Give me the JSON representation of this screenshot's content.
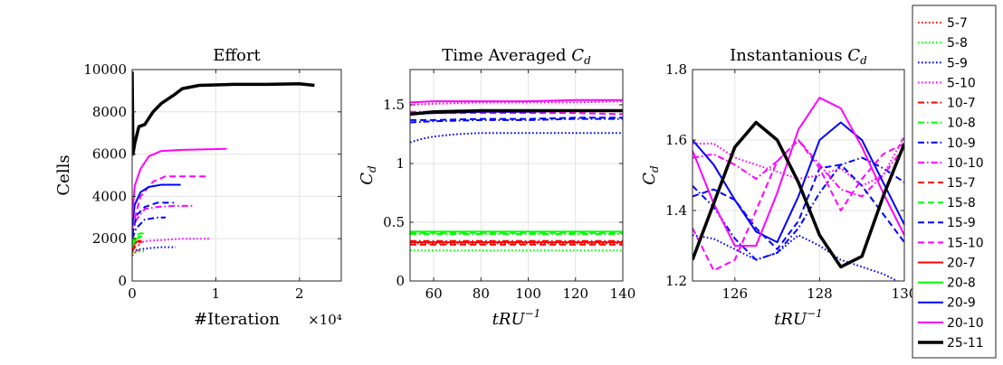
{
  "chart_data": [
    {
      "type": "line",
      "title": "Effort",
      "xlabel": "#Iteration",
      "ylabel": "Cells",
      "xlim": [
        0,
        25000
      ],
      "ylim": [
        0,
        10000
      ],
      "x_exponent_label": "×10⁴",
      "xticks": [
        0,
        10000,
        20000
      ],
      "xtick_labels": [
        "0",
        "1",
        "2"
      ],
      "yticks": [
        0,
        2000,
        4000,
        6000,
        8000,
        10000
      ],
      "ytick_labels": [
        "0",
        "2000",
        "4000",
        "6000",
        "8000",
        "10000"
      ],
      "grid": true,
      "series": [
        {
          "name": "5-7",
          "x": [
            0,
            200,
            500,
            800,
            1000
          ],
          "y": [
            1200,
            1300,
            1400,
            1450,
            1450
          ]
        },
        {
          "name": "5-8",
          "x": [
            0,
            200,
            600,
            1000,
            1500
          ],
          "y": [
            1300,
            1350,
            1400,
            1400,
            1400
          ]
        },
        {
          "name": "5-9",
          "x": [
            0,
            300,
            1000,
            2000,
            3500,
            5200
          ],
          "y": [
            1400,
            1450,
            1500,
            1550,
            1600,
            1600
          ]
        },
        {
          "name": "5-10",
          "x": [
            0,
            500,
            2000,
            4000,
            6000,
            9200
          ],
          "y": [
            1700,
            1800,
            1900,
            1950,
            2000,
            2000
          ]
        },
        {
          "name": "10-7",
          "x": [
            0,
            300,
            600,
            1000
          ],
          "y": [
            1400,
            1600,
            1700,
            1700
          ]
        },
        {
          "name": "10-8",
          "x": [
            0,
            300,
            800,
            1200
          ],
          "y": [
            1500,
            1900,
            2100,
            2100
          ]
        },
        {
          "name": "10-9",
          "x": [
            0,
            500,
            1500,
            3000,
            4000
          ],
          "y": [
            2000,
            2500,
            2900,
            3000,
            3000
          ]
        },
        {
          "name": "10-10",
          "x": [
            0,
            500,
            1500,
            3000,
            5000,
            7500
          ],
          "y": [
            2200,
            2900,
            3400,
            3500,
            3550,
            3550
          ]
        },
        {
          "name": "15-7",
          "x": [
            0,
            300,
            700,
            1200
          ],
          "y": [
            1500,
            1750,
            1850,
            1850
          ]
        },
        {
          "name": "15-8",
          "x": [
            0,
            400,
            900,
            1400
          ],
          "y": [
            1800,
            2100,
            2250,
            2250
          ]
        },
        {
          "name": "15-9",
          "x": [
            0,
            500,
            1500,
            3000,
            5000
          ],
          "y": [
            2200,
            3100,
            3500,
            3700,
            3700
          ]
        },
        {
          "name": "15-10",
          "x": [
            0,
            1000,
            2500,
            4000,
            6000,
            8800
          ],
          "y": [
            2500,
            4000,
            4700,
            4950,
            4950,
            4950
          ]
        },
        {
          "name": "20-7",
          "x": [
            0,
            300,
            800,
            1100
          ],
          "y": [
            1600,
            1800,
            1900,
            1900
          ]
        },
        {
          "name": "20-8",
          "x": [
            0,
            300,
            700,
            1000
          ],
          "y": [
            1600,
            1900,
            2050,
            2050
          ]
        },
        {
          "name": "20-9",
          "x": [
            0,
            300,
            1000,
            2000,
            3500,
            5800
          ],
          "y": [
            2600,
            3600,
            4200,
            4450,
            4550,
            4550
          ]
        },
        {
          "name": "20-10",
          "x": [
            0,
            300,
            1000,
            2000,
            3500,
            6000,
            11300
          ],
          "y": [
            3000,
            4500,
            5300,
            5900,
            6150,
            6200,
            6250
          ]
        },
        {
          "name": "25-11",
          "x": [
            0,
            100,
            300,
            800,
            1500,
            2500,
            3500,
            5000,
            6000,
            8000,
            12000,
            16000,
            20000,
            21800
          ],
          "y": [
            9900,
            6000,
            6500,
            7300,
            7400,
            8000,
            8400,
            8800,
            9100,
            9250,
            9300,
            9300,
            9330,
            9250
          ]
        }
      ]
    },
    {
      "type": "line",
      "title": "Time Averaged C_d",
      "xlabel": "tRU^{-1}",
      "ylabel": "C_d",
      "xlim": [
        50,
        140
      ],
      "ylim": [
        0,
        1.8
      ],
      "xticks": [
        60,
        80,
        100,
        120,
        140
      ],
      "xtick_labels": [
        "60",
        "80",
        "100",
        "120",
        "140"
      ],
      "yticks": [
        0,
        0.5,
        1,
        1.5
      ],
      "ytick_labels": [
        "0",
        "0.5",
        "1",
        "1.5"
      ],
      "grid": true,
      "series": [
        {
          "name": "5-7",
          "x": [
            50,
            60,
            80,
            100,
            120,
            140
          ],
          "y": [
            0.32,
            0.32,
            0.32,
            0.32,
            0.32,
            0.32
          ]
        },
        {
          "name": "5-8",
          "x": [
            50,
            60,
            80,
            100,
            120,
            140
          ],
          "y": [
            0.26,
            0.26,
            0.26,
            0.26,
            0.26,
            0.26
          ]
        },
        {
          "name": "5-9",
          "x": [
            50,
            55,
            60,
            70,
            80,
            100,
            120,
            140
          ],
          "y": [
            1.18,
            1.21,
            1.23,
            1.25,
            1.26,
            1.26,
            1.26,
            1.26
          ]
        },
        {
          "name": "5-10",
          "x": [
            50,
            60,
            80,
            100,
            120,
            140
          ],
          "y": [
            1.5,
            1.51,
            1.52,
            1.52,
            1.52,
            1.53
          ]
        },
        {
          "name": "10-7",
          "x": [
            50,
            60,
            80,
            100,
            120,
            140
          ],
          "y": [
            0.34,
            0.34,
            0.34,
            0.34,
            0.34,
            0.34
          ]
        },
        {
          "name": "10-8",
          "x": [
            50,
            60,
            80,
            100,
            120,
            140
          ],
          "y": [
            0.4,
            0.4,
            0.4,
            0.4,
            0.4,
            0.4
          ]
        },
        {
          "name": "10-9",
          "x": [
            50,
            60,
            80,
            100,
            120,
            140
          ],
          "y": [
            1.35,
            1.36,
            1.37,
            1.37,
            1.38,
            1.38
          ]
        },
        {
          "name": "10-10",
          "x": [
            50,
            60,
            80,
            100,
            120,
            140
          ],
          "y": [
            1.44,
            1.44,
            1.44,
            1.45,
            1.45,
            1.45
          ]
        },
        {
          "name": "15-7",
          "x": [
            50,
            60,
            80,
            100,
            120,
            140
          ],
          "y": [
            0.31,
            0.31,
            0.31,
            0.31,
            0.31,
            0.31
          ]
        },
        {
          "name": "15-8",
          "x": [
            50,
            60,
            80,
            100,
            120,
            140
          ],
          "y": [
            0.41,
            0.41,
            0.41,
            0.41,
            0.41,
            0.41
          ]
        },
        {
          "name": "15-9",
          "x": [
            50,
            60,
            80,
            100,
            120,
            140
          ],
          "y": [
            1.37,
            1.37,
            1.38,
            1.38,
            1.39,
            1.39
          ]
        },
        {
          "name": "15-10",
          "x": [
            50,
            60,
            80,
            100,
            120,
            140
          ],
          "y": [
            1.43,
            1.43,
            1.43,
            1.43,
            1.43,
            1.42
          ]
        },
        {
          "name": "20-7",
          "x": [
            50,
            60,
            80,
            100,
            120,
            140
          ],
          "y": [
            0.33,
            0.33,
            0.33,
            0.33,
            0.33,
            0.33
          ]
        },
        {
          "name": "20-8",
          "x": [
            50,
            60,
            80,
            100,
            120,
            140
          ],
          "y": [
            0.42,
            0.42,
            0.42,
            0.42,
            0.42,
            0.42
          ]
        },
        {
          "name": "20-9",
          "x": [
            50,
            60,
            80,
            100,
            120,
            140
          ],
          "y": [
            1.42,
            1.43,
            1.44,
            1.44,
            1.45,
            1.45
          ]
        },
        {
          "name": "20-10",
          "x": [
            50,
            60,
            80,
            100,
            120,
            140
          ],
          "y": [
            1.52,
            1.53,
            1.53,
            1.53,
            1.54,
            1.54
          ]
        },
        {
          "name": "25-11",
          "x": [
            50,
            55,
            60,
            80,
            100,
            120,
            140
          ],
          "y": [
            1.42,
            1.43,
            1.44,
            1.45,
            1.45,
            1.45,
            1.45
          ]
        }
      ]
    },
    {
      "type": "line",
      "title": "Instantanious C_d",
      "xlabel": "tRU^{-1}",
      "ylabel": "C_d",
      "xlim": [
        125,
        130
      ],
      "ylim": [
        1.2,
        1.8
      ],
      "xticks": [
        126,
        128,
        130
      ],
      "xtick_labels": [
        "126",
        "128",
        "130"
      ],
      "yticks": [
        1.2,
        1.4,
        1.6,
        1.8
      ],
      "ytick_labels": [
        "1.2",
        "1.4",
        "1.6",
        "1.8"
      ],
      "grid": true,
      "series": [
        {
          "name": "5-9",
          "x": [
            125,
            125.5,
            126,
            126.5,
            127,
            127.5,
            128,
            128.5,
            129,
            129.5,
            130
          ],
          "y": [
            1.33,
            1.32,
            1.29,
            1.26,
            1.28,
            1.33,
            1.3,
            1.26,
            1.24,
            1.22,
            1.19
          ]
        },
        {
          "name": "5-10",
          "x": [
            125,
            125.5,
            126,
            126.5,
            127,
            127.5,
            128,
            128.5,
            129,
            129.5,
            130
          ],
          "y": [
            1.59,
            1.59,
            1.55,
            1.53,
            1.51,
            1.49,
            1.5,
            1.52,
            1.47,
            1.5,
            1.61
          ]
        },
        {
          "name": "10-9",
          "x": [
            125,
            125.5,
            126,
            126.5,
            127,
            127.5,
            128,
            128.5,
            129,
            129.5,
            130
          ],
          "y": [
            1.47,
            1.41,
            1.32,
            1.26,
            1.28,
            1.35,
            1.45,
            1.53,
            1.55,
            1.52,
            1.48
          ]
        },
        {
          "name": "10-10",
          "x": [
            125,
            125.5,
            126,
            126.5,
            127,
            127.5,
            128,
            128.5,
            129,
            129.5,
            130
          ],
          "y": [
            1.55,
            1.56,
            1.53,
            1.49,
            1.54,
            1.6,
            1.53,
            1.46,
            1.44,
            1.5,
            1.58
          ]
        },
        {
          "name": "15-9",
          "x": [
            125,
            125.5,
            126,
            126.5,
            127,
            127.5,
            128,
            128.5,
            129,
            129.5,
            130
          ],
          "y": [
            1.44,
            1.46,
            1.43,
            1.35,
            1.29,
            1.37,
            1.52,
            1.53,
            1.47,
            1.39,
            1.31
          ]
        },
        {
          "name": "15-10",
          "x": [
            125,
            125.5,
            126,
            126.5,
            127,
            127.5,
            128,
            128.5,
            129,
            129.5,
            130
          ],
          "y": [
            1.35,
            1.23,
            1.26,
            1.4,
            1.54,
            1.6,
            1.52,
            1.4,
            1.49,
            1.56,
            1.59
          ]
        },
        {
          "name": "20-9",
          "x": [
            125,
            125.5,
            126,
            126.5,
            127,
            127.5,
            128,
            128.5,
            129,
            129.5,
            130
          ],
          "y": [
            1.6,
            1.53,
            1.43,
            1.34,
            1.31,
            1.44,
            1.6,
            1.65,
            1.6,
            1.48,
            1.36
          ]
        },
        {
          "name": "20-10",
          "x": [
            125,
            125.5,
            126,
            126.5,
            127,
            127.5,
            128,
            128.5,
            129,
            129.5,
            130
          ],
          "y": [
            1.57,
            1.42,
            1.3,
            1.3,
            1.45,
            1.63,
            1.72,
            1.69,
            1.58,
            1.45,
            1.33
          ]
        },
        {
          "name": "25-11",
          "x": [
            125,
            125.5,
            126,
            126.5,
            127,
            127.5,
            128,
            128.5,
            129,
            129.5,
            130
          ],
          "y": [
            1.26,
            1.42,
            1.58,
            1.65,
            1.6,
            1.48,
            1.33,
            1.24,
            1.27,
            1.44,
            1.59
          ]
        }
      ]
    }
  ],
  "legend": {
    "placement": "right",
    "entries": [
      {
        "label": "5-7",
        "color": "#ff0000",
        "style": "dotted"
      },
      {
        "label": "5-8",
        "color": "#00ff00",
        "style": "dotted"
      },
      {
        "label": "5-9",
        "color": "#0000ff",
        "style": "dotted"
      },
      {
        "label": "5-10",
        "color": "#ff00ff",
        "style": "dotted"
      },
      {
        "label": "10-7",
        "color": "#ff0000",
        "style": "dashdot"
      },
      {
        "label": "10-8",
        "color": "#00ff00",
        "style": "dashdot"
      },
      {
        "label": "10-9",
        "color": "#0000ff",
        "style": "dashdot"
      },
      {
        "label": "10-10",
        "color": "#ff00ff",
        "style": "dashdot"
      },
      {
        "label": "15-7",
        "color": "#ff0000",
        "style": "dashed"
      },
      {
        "label": "15-8",
        "color": "#00ff00",
        "style": "dashed"
      },
      {
        "label": "15-9",
        "color": "#0000ff",
        "style": "dashed"
      },
      {
        "label": "15-10",
        "color": "#ff00ff",
        "style": "dashed"
      },
      {
        "label": "20-7",
        "color": "#ff0000",
        "style": "solid"
      },
      {
        "label": "20-8",
        "color": "#00ff00",
        "style": "solid"
      },
      {
        "label": "20-9",
        "color": "#0000ff",
        "style": "solid"
      },
      {
        "label": "20-10",
        "color": "#ff00ff",
        "style": "solid"
      },
      {
        "label": "25-11",
        "color": "#000000",
        "style": "solid-thick"
      }
    ]
  }
}
